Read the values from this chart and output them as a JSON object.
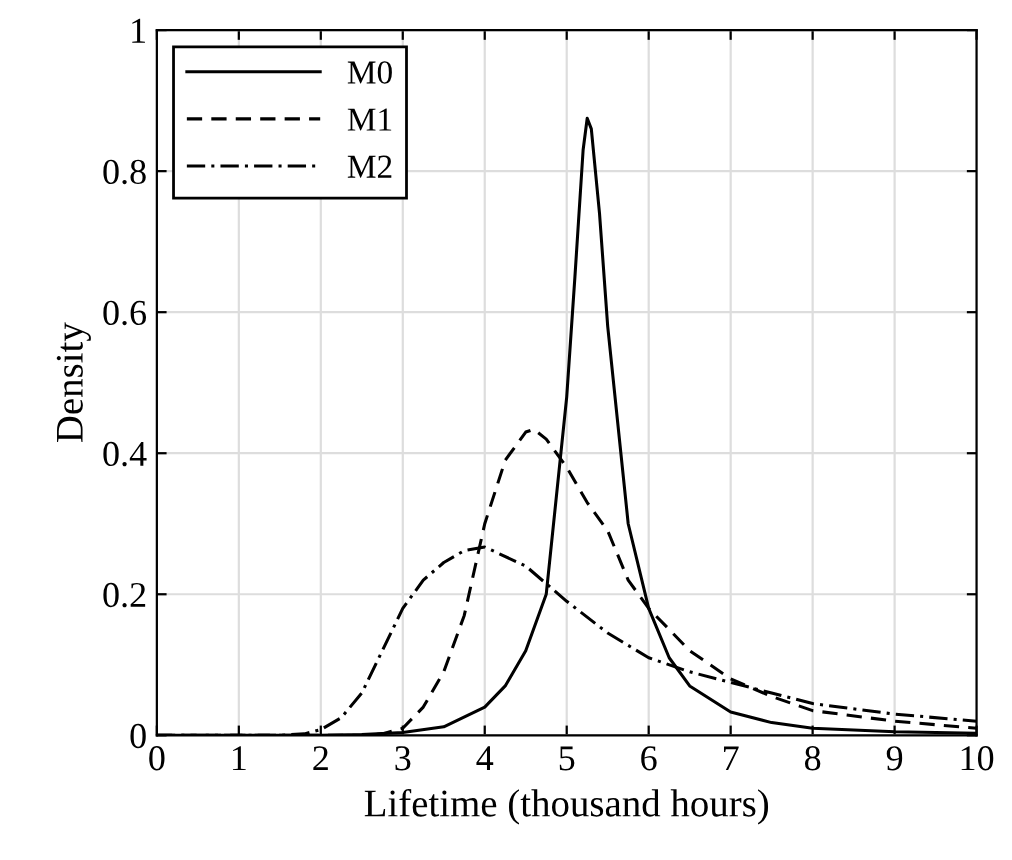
{
  "chart_data": {
    "type": "line",
    "xlabel": "Lifetime (thousand hours)",
    "ylabel": "Density",
    "xlim": [
      0,
      10
    ],
    "ylim": [
      0,
      1
    ],
    "xticks": [
      0,
      1,
      2,
      3,
      4,
      5,
      6,
      7,
      8,
      9,
      10
    ],
    "yticks": [
      0,
      0.2,
      0.4,
      0.6,
      0.8,
      1
    ],
    "grid": true,
    "legend": "top left",
    "marker": "none",
    "series": [
      {
        "name": "M0",
        "color": "#000000",
        "line_style": "solid",
        "x": [
          0,
          2,
          2.5,
          3,
          3.5,
          4,
          4.25,
          4.5,
          4.75,
          5,
          5.1,
          5.2,
          5.25,
          5.3,
          5.4,
          5.5,
          5.75,
          6,
          6.25,
          6.5,
          7,
          7.5,
          8,
          9,
          10
        ],
        "values": [
          0,
          0,
          0.001,
          0.004,
          0.012,
          0.04,
          0.07,
          0.12,
          0.2,
          0.48,
          0.65,
          0.83,
          0.875,
          0.86,
          0.74,
          0.58,
          0.3,
          0.18,
          0.11,
          0.07,
          0.033,
          0.018,
          0.01,
          0.005,
          0.003
        ]
      },
      {
        "name": "M1",
        "color": "#000000",
        "line_style": "dashed",
        "x": [
          0,
          2.5,
          2.75,
          3,
          3.25,
          3.5,
          3.75,
          4,
          4.25,
          4.5,
          4.6,
          4.75,
          5,
          5.25,
          5.5,
          5.75,
          6,
          6.25,
          6.5,
          7,
          7.5,
          8,
          9,
          10
        ],
        "values": [
          0,
          0,
          0.002,
          0.01,
          0.04,
          0.09,
          0.17,
          0.3,
          0.39,
          0.43,
          0.434,
          0.42,
          0.38,
          0.33,
          0.29,
          0.22,
          0.18,
          0.15,
          0.12,
          0.08,
          0.055,
          0.035,
          0.02,
          0.01
        ]
      },
      {
        "name": "M2",
        "color": "#000000",
        "line_style": "dashdot",
        "x": [
          0,
          1.5,
          1.8,
          2,
          2.25,
          2.5,
          2.75,
          3,
          3.25,
          3.5,
          3.75,
          4,
          4.5,
          5,
          5.5,
          6,
          6.5,
          7,
          7.5,
          8,
          9,
          10
        ],
        "values": [
          0,
          0,
          0.002,
          0.008,
          0.025,
          0.06,
          0.12,
          0.18,
          0.22,
          0.245,
          0.262,
          0.267,
          0.24,
          0.19,
          0.145,
          0.11,
          0.09,
          0.075,
          0.06,
          0.045,
          0.03,
          0.02
        ]
      }
    ]
  }
}
